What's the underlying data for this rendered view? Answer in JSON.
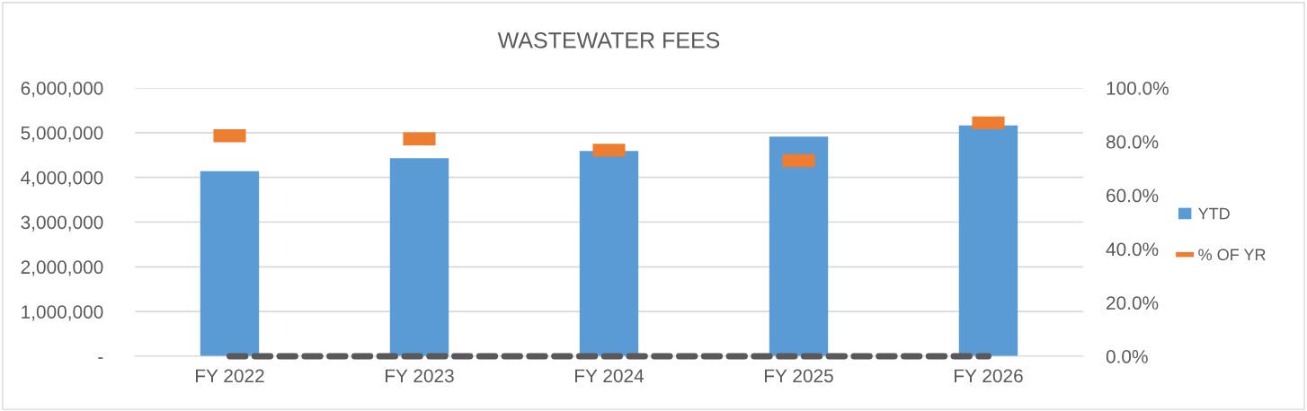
{
  "chart_data": {
    "type": "bar",
    "title": "WASTEWATER FEES",
    "categories": [
      "FY 2022",
      "FY 2023",
      "FY 2024",
      "FY 2025",
      "FY 2026"
    ],
    "series": [
      {
        "name": "YTD",
        "color": "#5b9bd5",
        "values": [
          4140000,
          4430000,
          4590000,
          4910000,
          5160000
        ]
      },
      {
        "name": "% OF YR",
        "type": "scatter",
        "axis": "y2",
        "color": "#ed7d31",
        "values": [
          82.2,
          81.0,
          76.8,
          72.9,
          87.0
        ]
      },
      {
        "type": "line",
        "axis": "y2",
        "color": "#595959",
        "line_style": "dashed",
        "values": [
          0,
          0,
          0,
          0,
          0
        ]
      }
    ],
    "ylim": [
      0,
      6000000
    ],
    "yticks": [
      {
        "value": 0,
        "label": "-"
      },
      {
        "value": 1000000,
        "label": "1,000,000"
      },
      {
        "value": 2000000,
        "label": "2,000,000"
      },
      {
        "value": 3000000,
        "label": "3,000,000"
      },
      {
        "value": 4000000,
        "label": "4,000,000"
      },
      {
        "value": 5000000,
        "label": "5,000,000"
      },
      {
        "value": 6000000,
        "label": "6,000,000"
      }
    ],
    "y2lim": [
      0,
      100
    ],
    "y2ticks": [
      {
        "value": 0,
        "label": "0.0%"
      },
      {
        "value": 20,
        "label": "20.0%"
      },
      {
        "value": 40,
        "label": "40.0%"
      },
      {
        "value": 60,
        "label": "60.0%"
      },
      {
        "value": 80,
        "label": "80.0%"
      },
      {
        "value": 100,
        "label": "100.0%"
      }
    ],
    "grid": "y",
    "legend": "right"
  }
}
